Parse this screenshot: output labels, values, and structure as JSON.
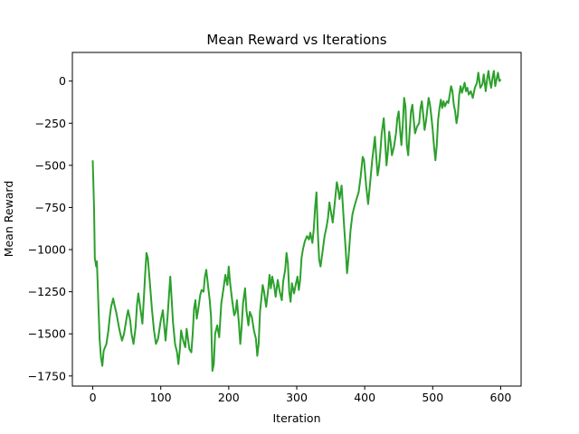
{
  "chart_data": {
    "type": "line",
    "title": "Mean Reward vs Iterations",
    "xlabel": "Iteration",
    "ylabel": "Mean Reward",
    "xlim": [
      -30,
      630
    ],
    "ylim": [
      -1810,
      170
    ],
    "xticks": [
      0,
      100,
      200,
      300,
      400,
      500,
      600
    ],
    "yticks": [
      0,
      -250,
      -500,
      -750,
      -1000,
      -1250,
      -1500,
      -1750
    ],
    "grid": false,
    "line_color": "#2ca02c",
    "anchors": [
      [
        0,
        -470
      ],
      [
        2,
        -760
      ],
      [
        3,
        -1050
      ],
      [
        5,
        -1100
      ],
      [
        6,
        -1070
      ],
      [
        8,
        -1300
      ],
      [
        10,
        -1530
      ],
      [
        12,
        -1640
      ],
      [
        14,
        -1690
      ],
      [
        16,
        -1600
      ],
      [
        20,
        -1560
      ],
      [
        23,
        -1480
      ],
      [
        25,
        -1400
      ],
      [
        27,
        -1340
      ],
      [
        30,
        -1290
      ],
      [
        32,
        -1330
      ],
      [
        35,
        -1380
      ],
      [
        38,
        -1450
      ],
      [
        40,
        -1490
      ],
      [
        43,
        -1540
      ],
      [
        46,
        -1500
      ],
      [
        48,
        -1450
      ],
      [
        50,
        -1400
      ],
      [
        52,
        -1360
      ],
      [
        55,
        -1420
      ],
      [
        57,
        -1500
      ],
      [
        60,
        -1560
      ],
      [
        63,
        -1460
      ],
      [
        65,
        -1330
      ],
      [
        67,
        -1260
      ],
      [
        70,
        -1350
      ],
      [
        73,
        -1440
      ],
      [
        75,
        -1300
      ],
      [
        77,
        -1150
      ],
      [
        79,
        -1020
      ],
      [
        81,
        -1050
      ],
      [
        84,
        -1200
      ],
      [
        87,
        -1350
      ],
      [
        90,
        -1480
      ],
      [
        93,
        -1560
      ],
      [
        96,
        -1530
      ],
      [
        100,
        -1420
      ],
      [
        103,
        -1360
      ],
      [
        105,
        -1450
      ],
      [
        107,
        -1540
      ],
      [
        110,
        -1400
      ],
      [
        112,
        -1280
      ],
      [
        114,
        -1160
      ],
      [
        116,
        -1290
      ],
      [
        118,
        -1430
      ],
      [
        121,
        -1560
      ],
      [
        124,
        -1610
      ],
      [
        126,
        -1680
      ],
      [
        128,
        -1600
      ],
      [
        130,
        -1480
      ],
      [
        133,
        -1540
      ],
      [
        136,
        -1580
      ],
      [
        138,
        -1470
      ],
      [
        140,
        -1530
      ],
      [
        142,
        -1590
      ],
      [
        145,
        -1610
      ],
      [
        147,
        -1500
      ],
      [
        149,
        -1350
      ],
      [
        151,
        -1300
      ],
      [
        153,
        -1410
      ],
      [
        155,
        -1360
      ],
      [
        158,
        -1270
      ],
      [
        160,
        -1240
      ],
      [
        163,
        -1250
      ],
      [
        165,
        -1160
      ],
      [
        167,
        -1120
      ],
      [
        170,
        -1230
      ],
      [
        172,
        -1300
      ],
      [
        174,
        -1400
      ],
      [
        176,
        -1720
      ],
      [
        178,
        -1680
      ],
      [
        180,
        -1500
      ],
      [
        183,
        -1450
      ],
      [
        186,
        -1520
      ],
      [
        189,
        -1320
      ],
      [
        192,
        -1240
      ],
      [
        195,
        -1150
      ],
      [
        198,
        -1210
      ],
      [
        200,
        -1100
      ],
      [
        202,
        -1200
      ],
      [
        205,
        -1300
      ],
      [
        208,
        -1390
      ],
      [
        210,
        -1370
      ],
      [
        212,
        -1300
      ],
      [
        215,
        -1440
      ],
      [
        217,
        -1560
      ],
      [
        219,
        -1460
      ],
      [
        221,
        -1320
      ],
      [
        224,
        -1230
      ],
      [
        226,
        -1360
      ],
      [
        229,
        -1450
      ],
      [
        231,
        -1370
      ],
      [
        234,
        -1400
      ],
      [
        237,
        -1480
      ],
      [
        240,
        -1530
      ],
      [
        242,
        -1630
      ],
      [
        244,
        -1560
      ],
      [
        246,
        -1370
      ],
      [
        248,
        -1290
      ],
      [
        250,
        -1210
      ],
      [
        252,
        -1250
      ],
      [
        255,
        -1340
      ],
      [
        258,
        -1240
      ],
      [
        260,
        -1150
      ],
      [
        262,
        -1230
      ],
      [
        264,
        -1160
      ],
      [
        267,
        -1220
      ],
      [
        269,
        -1280
      ],
      [
        272,
        -1180
      ],
      [
        275,
        -1250
      ],
      [
        278,
        -1300
      ],
      [
        280,
        -1190
      ],
      [
        283,
        -1120
      ],
      [
        285,
        -1020
      ],
      [
        287,
        -1080
      ],
      [
        289,
        -1250
      ],
      [
        291,
        -1310
      ],
      [
        293,
        -1200
      ],
      [
        296,
        -1260
      ],
      [
        299,
        -1200
      ],
      [
        301,
        -1160
      ],
      [
        303,
        -1240
      ],
      [
        305,
        -1180
      ],
      [
        307,
        -1050
      ],
      [
        309,
        -1000
      ],
      [
        312,
        -950
      ],
      [
        315,
        -920
      ],
      [
        318,
        -940
      ],
      [
        320,
        -900
      ],
      [
        323,
        -960
      ],
      [
        325,
        -880
      ],
      [
        327,
        -750
      ],
      [
        329,
        -660
      ],
      [
        331,
        -900
      ],
      [
        333,
        -1060
      ],
      [
        335,
        -1100
      ],
      [
        338,
        -1010
      ],
      [
        341,
        -920
      ],
      [
        344,
        -860
      ],
      [
        346,
        -810
      ],
      [
        348,
        -720
      ],
      [
        350,
        -770
      ],
      [
        353,
        -840
      ],
      [
        356,
        -720
      ],
      [
        359,
        -600
      ],
      [
        361,
        -640
      ],
      [
        363,
        -700
      ],
      [
        366,
        -620
      ],
      [
        368,
        -750
      ],
      [
        370,
        -880
      ],
      [
        372,
        -1000
      ],
      [
        374,
        -1140
      ],
      [
        376,
        -1060
      ],
      [
        379,
        -890
      ],
      [
        382,
        -790
      ],
      [
        385,
        -740
      ],
      [
        388,
        -700
      ],
      [
        391,
        -660
      ],
      [
        394,
        -570
      ],
      [
        397,
        -450
      ],
      [
        399,
        -470
      ],
      [
        402,
        -620
      ],
      [
        405,
        -730
      ],
      [
        408,
        -600
      ],
      [
        411,
        -470
      ],
      [
        413,
        -400
      ],
      [
        415,
        -330
      ],
      [
        417,
        -450
      ],
      [
        419,
        -560
      ],
      [
        421,
        -510
      ],
      [
        423,
        -420
      ],
      [
        425,
        -310
      ],
      [
        428,
        -220
      ],
      [
        430,
        -350
      ],
      [
        432,
        -500
      ],
      [
        434,
        -420
      ],
      [
        436,
        -300
      ],
      [
        438,
        -360
      ],
      [
        440,
        -440
      ],
      [
        443,
        -390
      ],
      [
        446,
        -310
      ],
      [
        448,
        -220
      ],
      [
        450,
        -180
      ],
      [
        452,
        -290
      ],
      [
        454,
        -380
      ],
      [
        456,
        -260
      ],
      [
        458,
        -100
      ],
      [
        460,
        -150
      ],
      [
        462,
        -380
      ],
      [
        464,
        -440
      ],
      [
        466,
        -300
      ],
      [
        468,
        -180
      ],
      [
        470,
        -140
      ],
      [
        472,
        -230
      ],
      [
        474,
        -310
      ],
      [
        477,
        -270
      ],
      [
        480,
        -250
      ],
      [
        482,
        -160
      ],
      [
        484,
        -120
      ],
      [
        486,
        -200
      ],
      [
        488,
        -290
      ],
      [
        490,
        -240
      ],
      [
        492,
        -170
      ],
      [
        494,
        -100
      ],
      [
        496,
        -140
      ],
      [
        498,
        -210
      ],
      [
        500,
        -290
      ],
      [
        502,
        -390
      ],
      [
        504,
        -470
      ],
      [
        506,
        -380
      ],
      [
        508,
        -230
      ],
      [
        510,
        -160
      ],
      [
        512,
        -110
      ],
      [
        514,
        -160
      ],
      [
        516,
        -120
      ],
      [
        518,
        -150
      ],
      [
        521,
        -120
      ],
      [
        523,
        -130
      ],
      [
        525,
        -80
      ],
      [
        527,
        -30
      ],
      [
        529,
        -60
      ],
      [
        531,
        -140
      ],
      [
        533,
        -180
      ],
      [
        535,
        -250
      ],
      [
        537,
        -200
      ],
      [
        539,
        -80
      ],
      [
        541,
        -30
      ],
      [
        543,
        -70
      ],
      [
        545,
        -40
      ],
      [
        547,
        -10
      ],
      [
        549,
        -60
      ],
      [
        551,
        -40
      ],
      [
        553,
        -80
      ],
      [
        556,
        -60
      ],
      [
        559,
        -100
      ],
      [
        562,
        -40
      ],
      [
        565,
        -10
      ],
      [
        567,
        50
      ],
      [
        570,
        -40
      ],
      [
        573,
        -20
      ],
      [
        575,
        40
      ],
      [
        578,
        -60
      ],
      [
        580,
        10
      ],
      [
        582,
        60
      ],
      [
        584,
        0
      ],
      [
        586,
        -40
      ],
      [
        588,
        20
      ],
      [
        590,
        60
      ],
      [
        592,
        -30
      ],
      [
        594,
        10
      ],
      [
        596,
        50
      ],
      [
        598,
        0
      ],
      [
        600,
        10
      ]
    ]
  }
}
